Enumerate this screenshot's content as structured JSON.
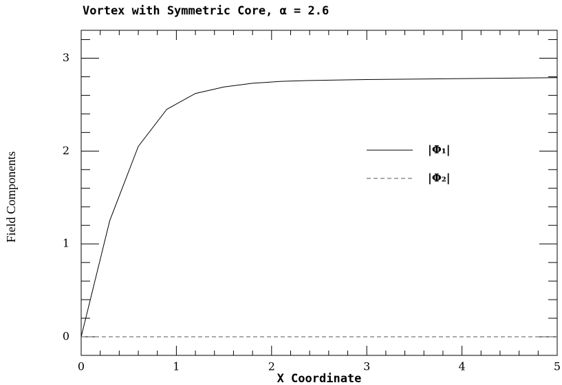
{
  "chart_data": {
    "type": "line",
    "title": "Vortex with Symmetric Core, α = 2.6",
    "x_label": "X Coordinate",
    "y_label": "Field Components",
    "x": [
      0,
      0.3,
      0.6,
      0.9,
      1.2,
      1.5,
      1.8,
      2.1,
      2.4,
      3,
      4,
      5
    ],
    "series": [
      {
        "name": "|Φ₁|",
        "color": "#000000",
        "dash": false,
        "values": [
          0,
          1.25,
          2.05,
          2.45,
          2.62,
          2.69,
          2.73,
          2.75,
          2.76,
          2.77,
          2.78,
          2.79
        ]
      },
      {
        "name": "|Φ₂|",
        "color": "#555555",
        "dash": true,
        "values": [
          0,
          0,
          0,
          0,
          0,
          0,
          0,
          0,
          0,
          0,
          0,
          0
        ]
      }
    ],
    "xlim": [
      0,
      5
    ],
    "ylim": [
      -0.2,
      3.3
    ],
    "xticks": [
      0,
      1,
      2,
      3,
      4,
      5
    ],
    "yticks": [
      0,
      1,
      2,
      3
    ],
    "xminorticks": [
      0.2,
      0.4,
      0.6,
      0.8,
      1.2,
      1.4,
      1.6,
      1.8,
      2.2,
      2.4,
      2.6,
      2.8,
      3.2,
      3.4,
      3.6,
      3.8,
      4.2,
      4.4,
      4.6,
      4.8
    ],
    "yminorticks": [
      0.2,
      0.4,
      0.6,
      0.8,
      1.2,
      1.4,
      1.6,
      1.8,
      2.2,
      2.4,
      2.6,
      2.8,
      3.2
    ],
    "grid": false
  }
}
